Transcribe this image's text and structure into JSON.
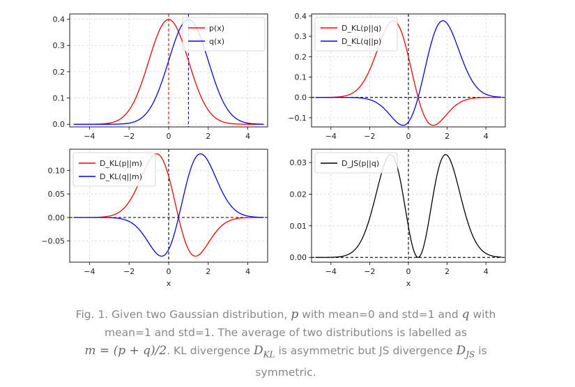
{
  "chart_data": [
    {
      "type": "line",
      "xlim": [
        -5,
        5
      ],
      "ylim": [
        -0.01,
        0.42
      ],
      "xticks": [
        "−4",
        "−2",
        "0",
        "2",
        "4"
      ],
      "yticks": [
        "0.0",
        "0.1",
        "0.2",
        "0.3",
        "0.4"
      ],
      "xlabel": "",
      "legend_position": "upper right",
      "series": [
        {
          "name": "p(x)",
          "color": "#ff0000",
          "formula": "p(x)"
        },
        {
          "name": "q(x)",
          "color": "#0000ff",
          "formula": "q(x)"
        }
      ],
      "vlines": [
        {
          "x": 0,
          "color": "#ff0000"
        },
        {
          "x": 1,
          "color": "#0000ff"
        }
      ],
      "grid": true
    },
    {
      "type": "line",
      "xlim": [
        -5,
        5
      ],
      "ylim": [
        -0.145,
        0.41
      ],
      "xticks": [
        "−4",
        "−2",
        "0",
        "2",
        "4"
      ],
      "yticks": [
        "−0.1",
        "0.0",
        "0.1",
        "0.2",
        "0.3",
        "0.4"
      ],
      "xlabel": "",
      "legend_position": "upper left",
      "series": [
        {
          "name": "D_KL(p||q)",
          "color": "#ff0000",
          "formula": "p*ln(p/q)"
        },
        {
          "name": "D_KL(q||p)",
          "color": "#0000ff",
          "formula": "q*ln(q/p)"
        }
      ],
      "hline": 0,
      "vline": 0,
      "grid": true
    },
    {
      "type": "line",
      "xlim": [
        -5,
        5
      ],
      "ylim": [
        -0.095,
        0.145
      ],
      "xticks": [
        "−4",
        "−2",
        "0",
        "2",
        "4"
      ],
      "yticks": [
        "−0.05",
        "0.00",
        "0.05",
        "0.10"
      ],
      "xlabel": "x",
      "legend_position": "upper left",
      "series": [
        {
          "name": "D_KL(p||m)",
          "color": "#ff0000",
          "formula": "p*ln(p/m)"
        },
        {
          "name": "D_KL(q||m)",
          "color": "#0000ff",
          "formula": "q*ln(q/m)"
        }
      ],
      "hline": 0,
      "vline": 0,
      "grid": true
    },
    {
      "type": "line",
      "xlim": [
        -5,
        5
      ],
      "ylim": [
        -0.0015,
        0.0342
      ],
      "xticks": [
        "−4",
        "−2",
        "0",
        "2",
        "4"
      ],
      "yticks": [
        "0.00",
        "0.01",
        "0.02",
        "0.03"
      ],
      "xlabel": "x",
      "legend_position": "upper left",
      "series": [
        {
          "name": "D_JS(p||q)",
          "color": "#000000",
          "formula": "0.5*(p*ln(p/m)+q*ln(q/m))"
        }
      ],
      "hline": 0,
      "vline": 0,
      "grid": true
    }
  ],
  "caption": {
    "line1_a": "Fig. 1. Given two Gaussian distribution, ",
    "p_sym": "p",
    "line1_b": " with mean=0 and std=1 and ",
    "q_sym": "q",
    "line1_c": " with",
    "line2": "mean=1 and std=1. The average of two distributions is labelled as",
    "m_formula": "m = (p + q)/2",
    "line3_a": ". KL divergence ",
    "dkl": "D",
    "dkl_sub": "KL",
    "line3_b": " is asymmetric but JS divergence ",
    "djs": "D",
    "djs_sub": "JS",
    "line3_c": " is",
    "line4": "symmetric."
  }
}
